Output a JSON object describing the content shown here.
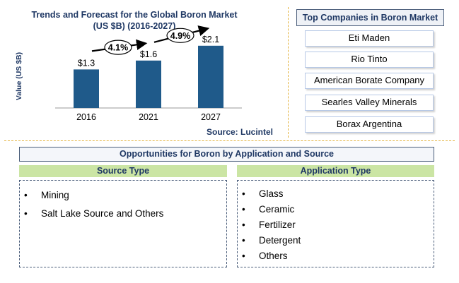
{
  "chart_data": {
    "type": "bar",
    "title": "Trends and Forecast for the Global Boron Market (US $B) (2016-2027)",
    "title_lines": [
      "Trends and Forecast for the Global Boron Market",
      "(US $B) (2016-2027)"
    ],
    "ylabel": "Value (US $B)",
    "categories": [
      "2016",
      "2021",
      "2027"
    ],
    "values": [
      1.3,
      1.6,
      2.1
    ],
    "value_labels": [
      "$1.3",
      "$1.6",
      "$2.1"
    ],
    "ylim": [
      0,
      2.5
    ],
    "growth_annotations": [
      {
        "from": "2016",
        "to": "2021",
        "label": "4.1%"
      },
      {
        "from": "2021",
        "to": "2027",
        "label": "4.9%"
      }
    ],
    "bar_color": "#1f5a8a",
    "source": "Source: Lucintel"
  },
  "companies": {
    "title": "Top Companies in Boron Market",
    "items": [
      "Eti Maden",
      "Rio Tinto",
      "American Borate Company",
      "Searles Valley Minerals",
      "Borax Argentina"
    ]
  },
  "opportunities": {
    "title": "Opportunities for Boron by Application and Source",
    "source_type": {
      "header": "Source Type",
      "items": [
        "Mining",
        "Salt Lake Source and Others"
      ]
    },
    "application_type": {
      "header": "Application Type",
      "items": [
        "Glass",
        "Ceramic",
        "Fertilizer",
        "Detergent",
        "Others"
      ]
    }
  },
  "colors": {
    "accent": "#1f3864",
    "divider": "#e3b23c",
    "header_green": "#cbe5a4"
  }
}
